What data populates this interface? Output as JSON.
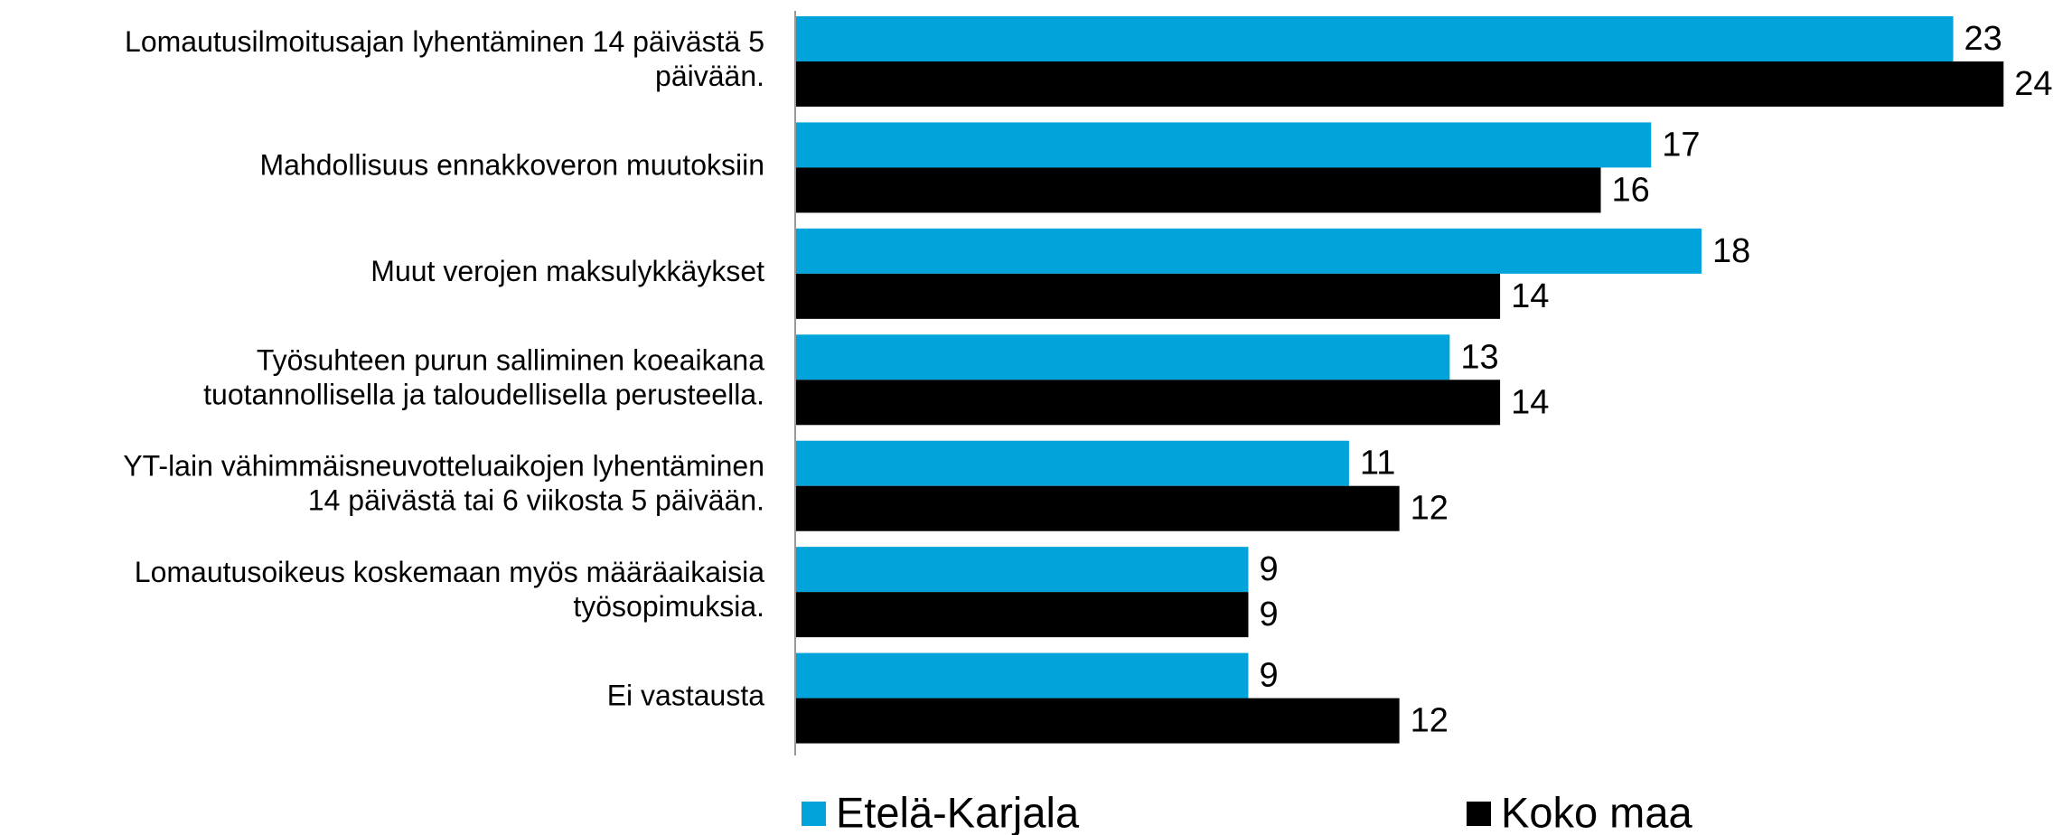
{
  "chart_data": {
    "type": "bar",
    "orientation": "horizontal",
    "categories": [
      "Lomautusilmoitusajan lyhentäminen 14 päivästä 5\npäivään.",
      "Mahdollisuus ennakkoveron muutoksiin",
      "Muut verojen maksulykkäykset",
      "Työsuhteen purun salliminen koeaikana\ntuotannollisella ja taloudellisella perusteella.",
      "YT-lain vähimmäisneuvotteluaikojen lyhentäminen\n14 päivästä tai 6 viikosta 5 päivään.",
      "Lomautusoikeus koskemaan myös määräaikaisia\ntyösopimuksia.",
      "Ei vastausta"
    ],
    "series": [
      {
        "name": "Etelä-Karjala",
        "color": "#00a3da",
        "values": [
          23,
          17,
          18,
          13,
          11,
          9,
          9
        ]
      },
      {
        "name": "Koko maa",
        "color": "#000000",
        "values": [
          24,
          16,
          14,
          14,
          12,
          9,
          12
        ]
      }
    ],
    "xlim": [
      0,
      25
    ],
    "legend": "bottom"
  }
}
